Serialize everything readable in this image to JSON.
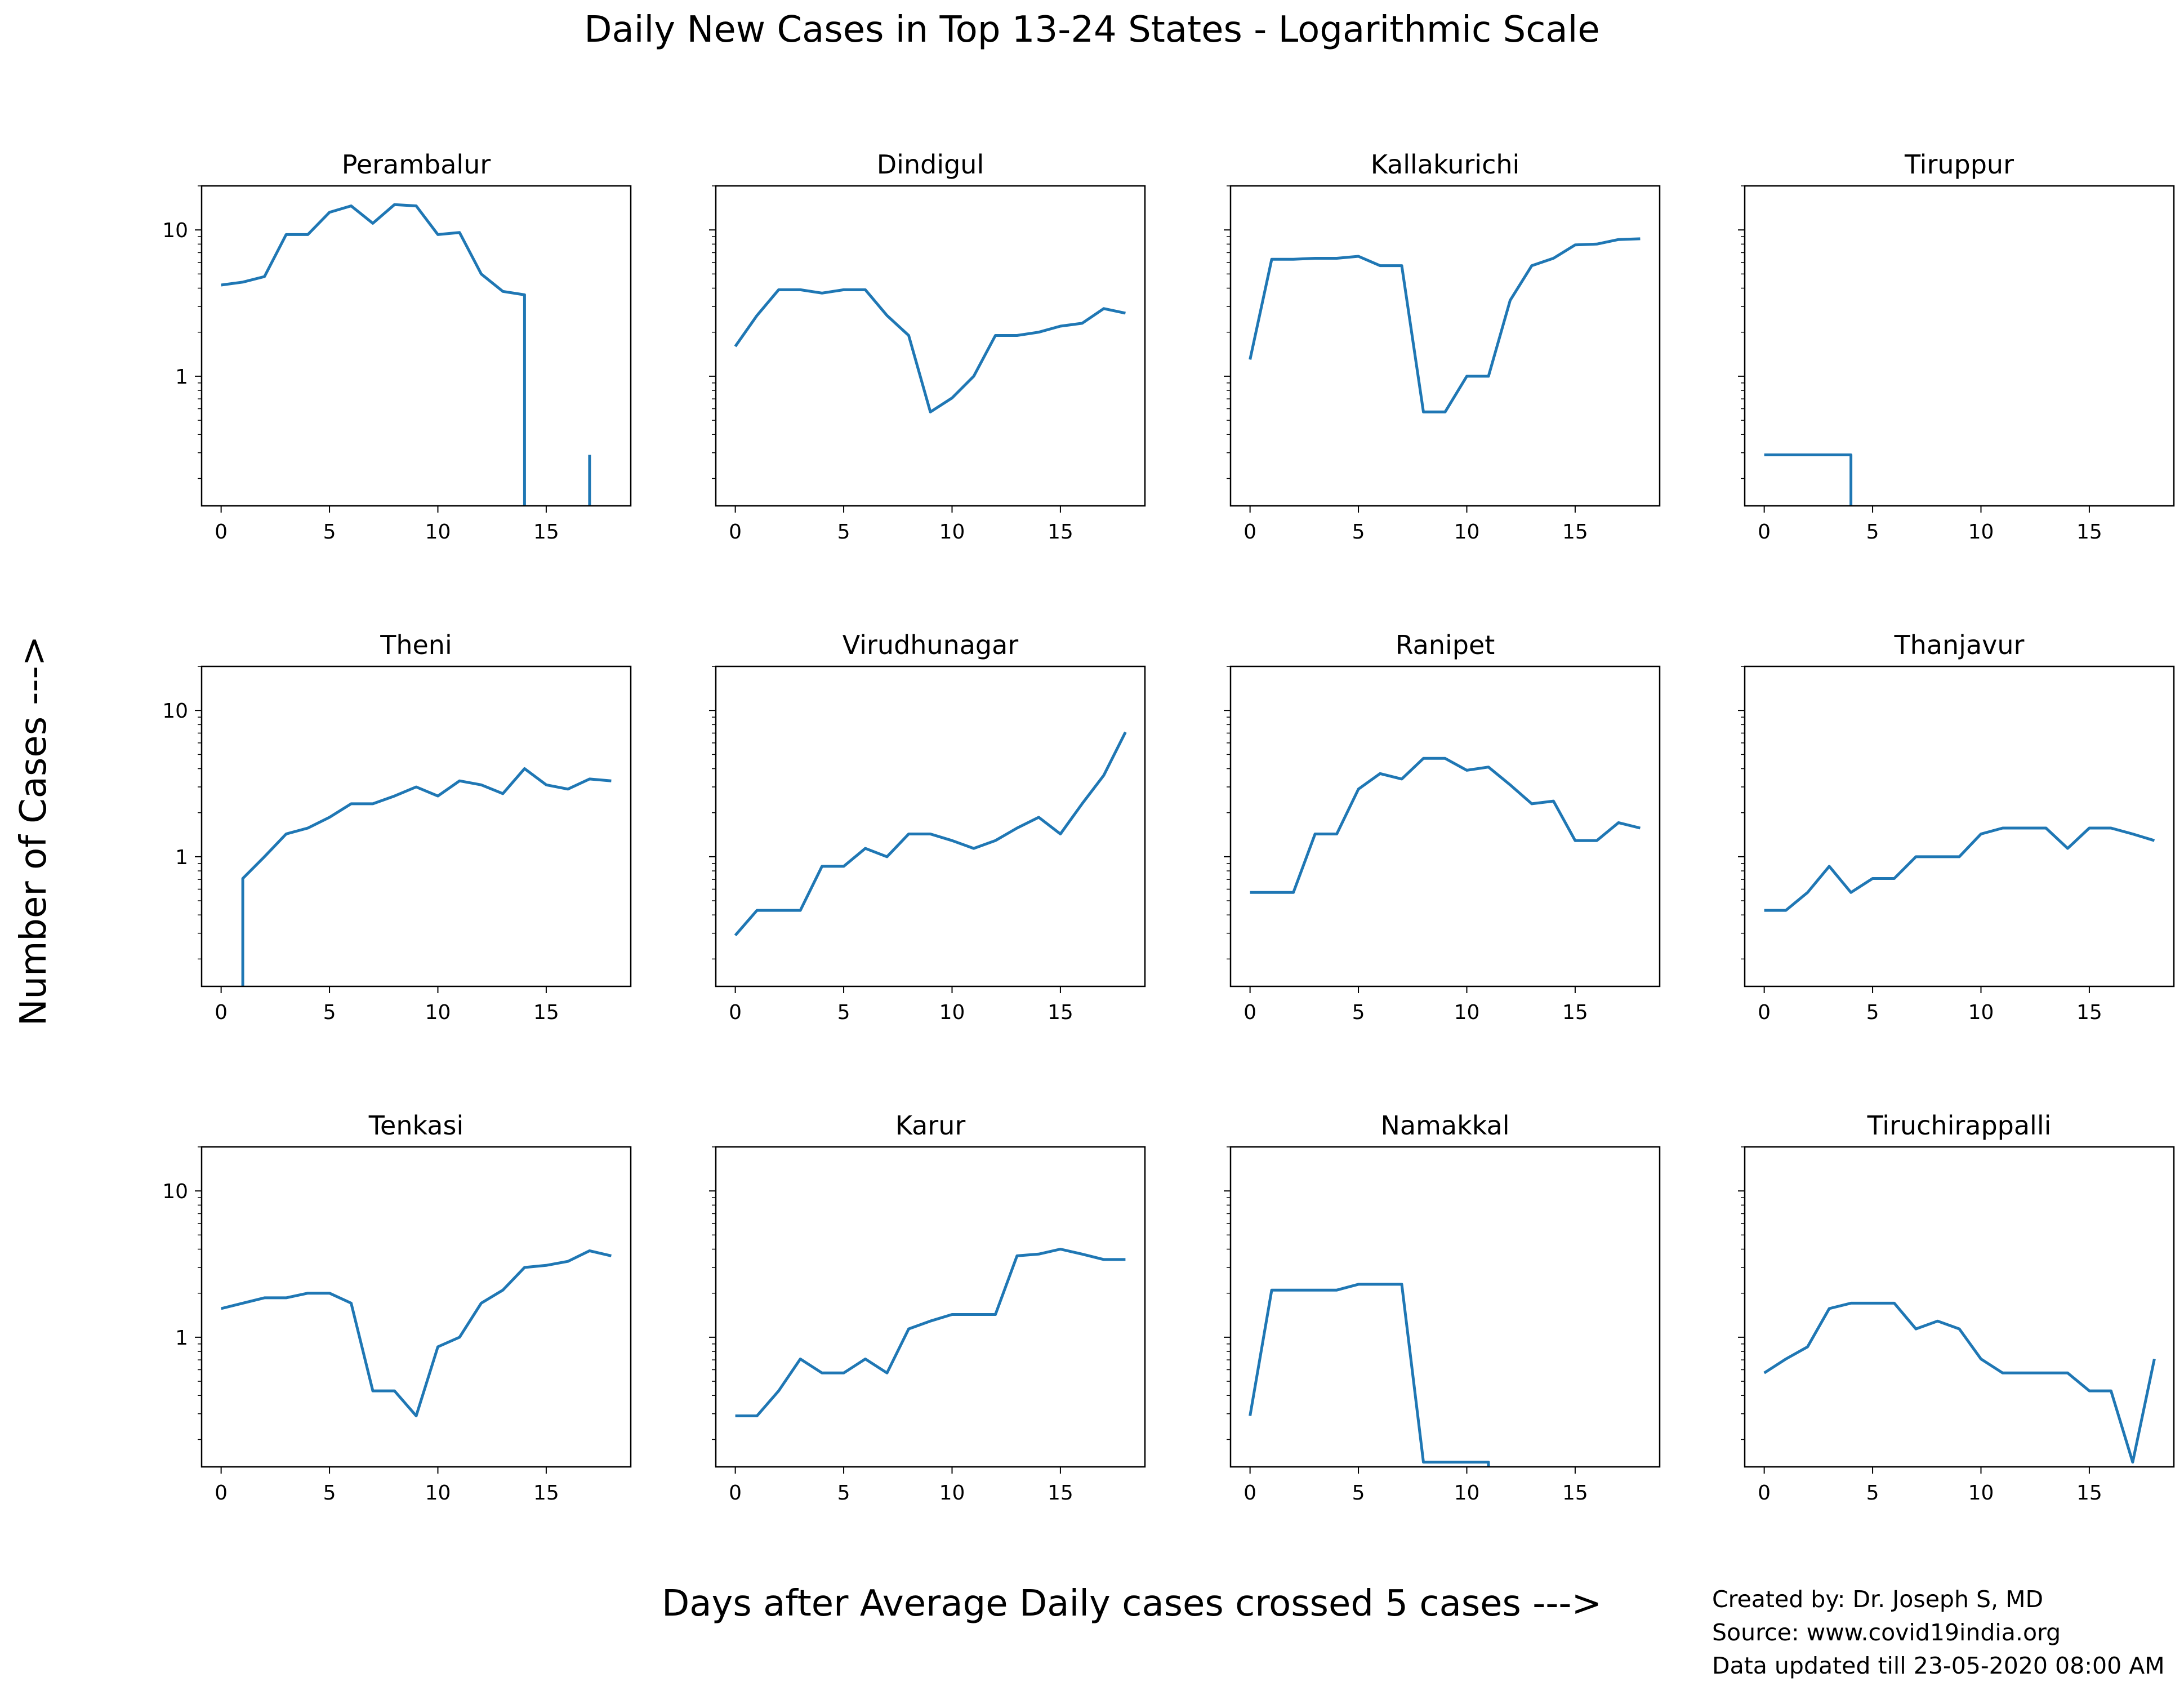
{
  "figure": {
    "title": "Daily New Cases in Top 13-24 States - Logarithmic Scale",
    "xlabel": "Days after Average Daily cases crossed 5 cases --->",
    "ylabel": "Number of Cases --->",
    "credits": [
      "Created by: Dr. Joseph S, MD",
      "Source: www.covid19india.org",
      "Data updated till 23-05-2020 08:00 AM"
    ],
    "line_color": "#1f77b4"
  },
  "chart_data": [
    {
      "type": "line",
      "title": "Perambalur",
      "yscale": "log",
      "ylim": [
        0.13,
        20
      ],
      "xlim": [
        -0.9,
        18.9
      ],
      "xticks": [
        0,
        5,
        10,
        15
      ],
      "yticks": [
        1,
        10
      ],
      "x": [
        0,
        1,
        2,
        3,
        4,
        5,
        6,
        7,
        8,
        9,
        10,
        11,
        12,
        13,
        14,
        14,
        null,
        17,
        17
      ],
      "y": [
        4.2,
        4.4,
        4.8,
        9.3,
        9.3,
        13.2,
        14.6,
        11.1,
        14.9,
        14.6,
        9.3,
        9.6,
        5.0,
        3.8,
        3.6,
        0.13,
        null,
        0.13,
        0.29
      ]
    },
    {
      "type": "line",
      "title": "Dindigul",
      "yscale": "log",
      "ylim": [
        0.13,
        20
      ],
      "xlim": [
        -0.9,
        18.9
      ],
      "xticks": [
        0,
        5,
        10,
        15
      ],
      "yticks": [
        1,
        10
      ],
      "x": [
        0,
        1,
        2,
        3,
        4,
        5,
        6,
        7,
        8,
        9,
        10,
        11,
        12,
        13,
        14,
        15,
        16,
        17,
        18
      ],
      "y": [
        1.6,
        2.6,
        3.9,
        3.9,
        3.7,
        3.9,
        3.9,
        2.6,
        1.9,
        0.57,
        0.71,
        1.0,
        1.9,
        1.9,
        2.0,
        2.2,
        2.3,
        2.9,
        2.7
      ]
    },
    {
      "type": "line",
      "title": "Kallakurichi",
      "yscale": "log",
      "ylim": [
        0.13,
        20
      ],
      "xlim": [
        -0.9,
        18.9
      ],
      "xticks": [
        0,
        5,
        10,
        15
      ],
      "yticks": [
        1,
        10
      ],
      "x": [
        0,
        1,
        2,
        3,
        4,
        5,
        6,
        7,
        8,
        9,
        10,
        11,
        12,
        13,
        14,
        15,
        16,
        17,
        18
      ],
      "y": [
        1.3,
        6.3,
        6.3,
        6.4,
        6.4,
        6.6,
        5.7,
        5.7,
        0.57,
        0.57,
        1.0,
        1.0,
        3.3,
        5.7,
        6.4,
        7.9,
        8.0,
        8.6,
        8.7
      ]
    },
    {
      "type": "line",
      "title": "Tiruppur",
      "yscale": "log",
      "ylim": [
        0.13,
        20
      ],
      "xlim": [
        -0.9,
        18.9
      ],
      "xticks": [
        0,
        5,
        10,
        15
      ],
      "yticks": [
        1,
        10
      ],
      "x": [
        0,
        1,
        2,
        3,
        4,
        4
      ],
      "y": [
        0.29,
        0.29,
        0.29,
        0.29,
        0.29,
        0.13
      ]
    },
    {
      "type": "line",
      "title": "Theni",
      "yscale": "log",
      "ylim": [
        0.13,
        20
      ],
      "xlim": [
        -0.9,
        18.9
      ],
      "xticks": [
        0,
        5,
        10,
        15
      ],
      "yticks": [
        1,
        10
      ],
      "x": [
        1,
        1,
        2,
        3,
        4,
        5,
        6,
        7,
        8,
        9,
        10,
        11,
        12,
        13,
        14,
        15,
        16,
        17,
        18
      ],
      "y": [
        0.13,
        0.71,
        1.0,
        1.43,
        1.57,
        1.86,
        2.3,
        2.3,
        2.6,
        3.0,
        2.6,
        3.3,
        3.1,
        2.7,
        4.0,
        3.1,
        2.9,
        3.4,
        3.3
      ]
    },
    {
      "type": "line",
      "title": "Virudhunagar",
      "yscale": "log",
      "ylim": [
        0.13,
        20
      ],
      "xlim": [
        -0.9,
        18.9
      ],
      "xticks": [
        0,
        5,
        10,
        15
      ],
      "yticks": [
        1,
        10
      ],
      "x": [
        0,
        1,
        2,
        3,
        4,
        5,
        6,
        7,
        8,
        9,
        10,
        11,
        12,
        13,
        14,
        15,
        16,
        17,
        18
      ],
      "y": [
        0.29,
        0.43,
        0.43,
        0.43,
        0.86,
        0.86,
        1.14,
        1.0,
        1.43,
        1.43,
        1.29,
        1.14,
        1.29,
        1.57,
        1.86,
        1.43,
        2.3,
        3.6,
        7.1
      ]
    },
    {
      "type": "line",
      "title": "Ranipet",
      "yscale": "log",
      "ylim": [
        0.13,
        20
      ],
      "xlim": [
        -0.9,
        18.9
      ],
      "xticks": [
        0,
        5,
        10,
        15
      ],
      "yticks": [
        1,
        10
      ],
      "x": [
        0,
        1,
        2,
        3,
        4,
        5,
        6,
        7,
        8,
        9,
        10,
        11,
        12,
        13,
        14,
        15,
        16,
        17,
        18
      ],
      "y": [
        0.57,
        0.57,
        0.57,
        1.43,
        1.43,
        2.9,
        3.7,
        3.4,
        4.7,
        4.7,
        3.9,
        4.1,
        3.1,
        2.3,
        2.4,
        1.29,
        1.29,
        1.71,
        1.57
      ]
    },
    {
      "type": "line",
      "title": "Thanjavur",
      "yscale": "log",
      "ylim": [
        0.13,
        20
      ],
      "xlim": [
        -0.9,
        18.9
      ],
      "xticks": [
        0,
        5,
        10,
        15
      ],
      "yticks": [
        1,
        10
      ],
      "x": [
        0,
        1,
        2,
        3,
        4,
        5,
        6,
        7,
        8,
        9,
        10,
        11,
        12,
        13,
        14,
        15,
        16,
        17,
        18
      ],
      "y": [
        0.43,
        0.43,
        0.57,
        0.86,
        0.57,
        0.71,
        0.71,
        1.0,
        1.0,
        1.0,
        1.43,
        1.57,
        1.57,
        1.57,
        1.14,
        1.57,
        1.57,
        1.43,
        1.29
      ]
    },
    {
      "type": "line",
      "title": "Tenkasi",
      "yscale": "log",
      "ylim": [
        0.13,
        20
      ],
      "xlim": [
        -0.9,
        18.9
      ],
      "xticks": [
        0,
        5,
        10,
        15
      ],
      "yticks": [
        1,
        10
      ],
      "x": [
        0,
        1,
        2,
        3,
        4,
        5,
        6,
        7,
        8,
        9,
        10,
        11,
        12,
        13,
        14,
        15,
        16,
        17,
        18
      ],
      "y": [
        1.57,
        1.71,
        1.86,
        1.86,
        2.0,
        2.0,
        1.71,
        0.43,
        0.43,
        0.29,
        0.86,
        1.0,
        1.71,
        2.1,
        3.0,
        3.1,
        3.3,
        3.9,
        3.6
      ]
    },
    {
      "type": "line",
      "title": "Karur",
      "yscale": "log",
      "ylim": [
        0.13,
        20
      ],
      "xlim": [
        -0.9,
        18.9
      ],
      "xticks": [
        0,
        5,
        10,
        15
      ],
      "yticks": [
        1,
        10
      ],
      "x": [
        0,
        1,
        2,
        3,
        4,
        5,
        6,
        7,
        8,
        9,
        10,
        11,
        12,
        13,
        14,
        15,
        16,
        17,
        18
      ],
      "y": [
        0.29,
        0.29,
        0.43,
        0.71,
        0.57,
        0.57,
        0.71,
        0.57,
        1.14,
        1.29,
        1.43,
        1.43,
        1.43,
        3.6,
        3.7,
        4.0,
        3.7,
        3.4,
        3.4
      ]
    },
    {
      "type": "line",
      "title": "Namakkal",
      "yscale": "log",
      "ylim": [
        0.13,
        20
      ],
      "xlim": [
        -0.9,
        18.9
      ],
      "xticks": [
        0,
        5,
        10,
        15
      ],
      "yticks": [
        1,
        10
      ],
      "x": [
        0,
        1,
        2,
        3,
        4,
        5,
        6,
        7,
        8,
        9,
        10,
        11,
        11
      ],
      "y": [
        0.29,
        2.1,
        2.1,
        2.1,
        2.1,
        2.3,
        2.3,
        2.3,
        0.14,
        0.14,
        0.14,
        0.14,
        0.13
      ]
    },
    {
      "type": "line",
      "title": "Tiruchirappalli",
      "yscale": "log",
      "ylim": [
        0.13,
        20
      ],
      "xlim": [
        -0.9,
        18.9
      ],
      "xticks": [
        0,
        5,
        10,
        15
      ],
      "yticks": [
        1,
        10
      ],
      "x": [
        0,
        1,
        2,
        3,
        4,
        5,
        6,
        7,
        8,
        9,
        10,
        11,
        12,
        13,
        14,
        15,
        16,
        17,
        18
      ],
      "y": [
        0.57,
        0.71,
        0.86,
        1.57,
        1.71,
        1.71,
        1.71,
        1.14,
        1.29,
        1.14,
        0.71,
        0.57,
        0.57,
        0.57,
        0.57,
        0.43,
        0.43,
        0.14,
        0.71
      ]
    }
  ]
}
